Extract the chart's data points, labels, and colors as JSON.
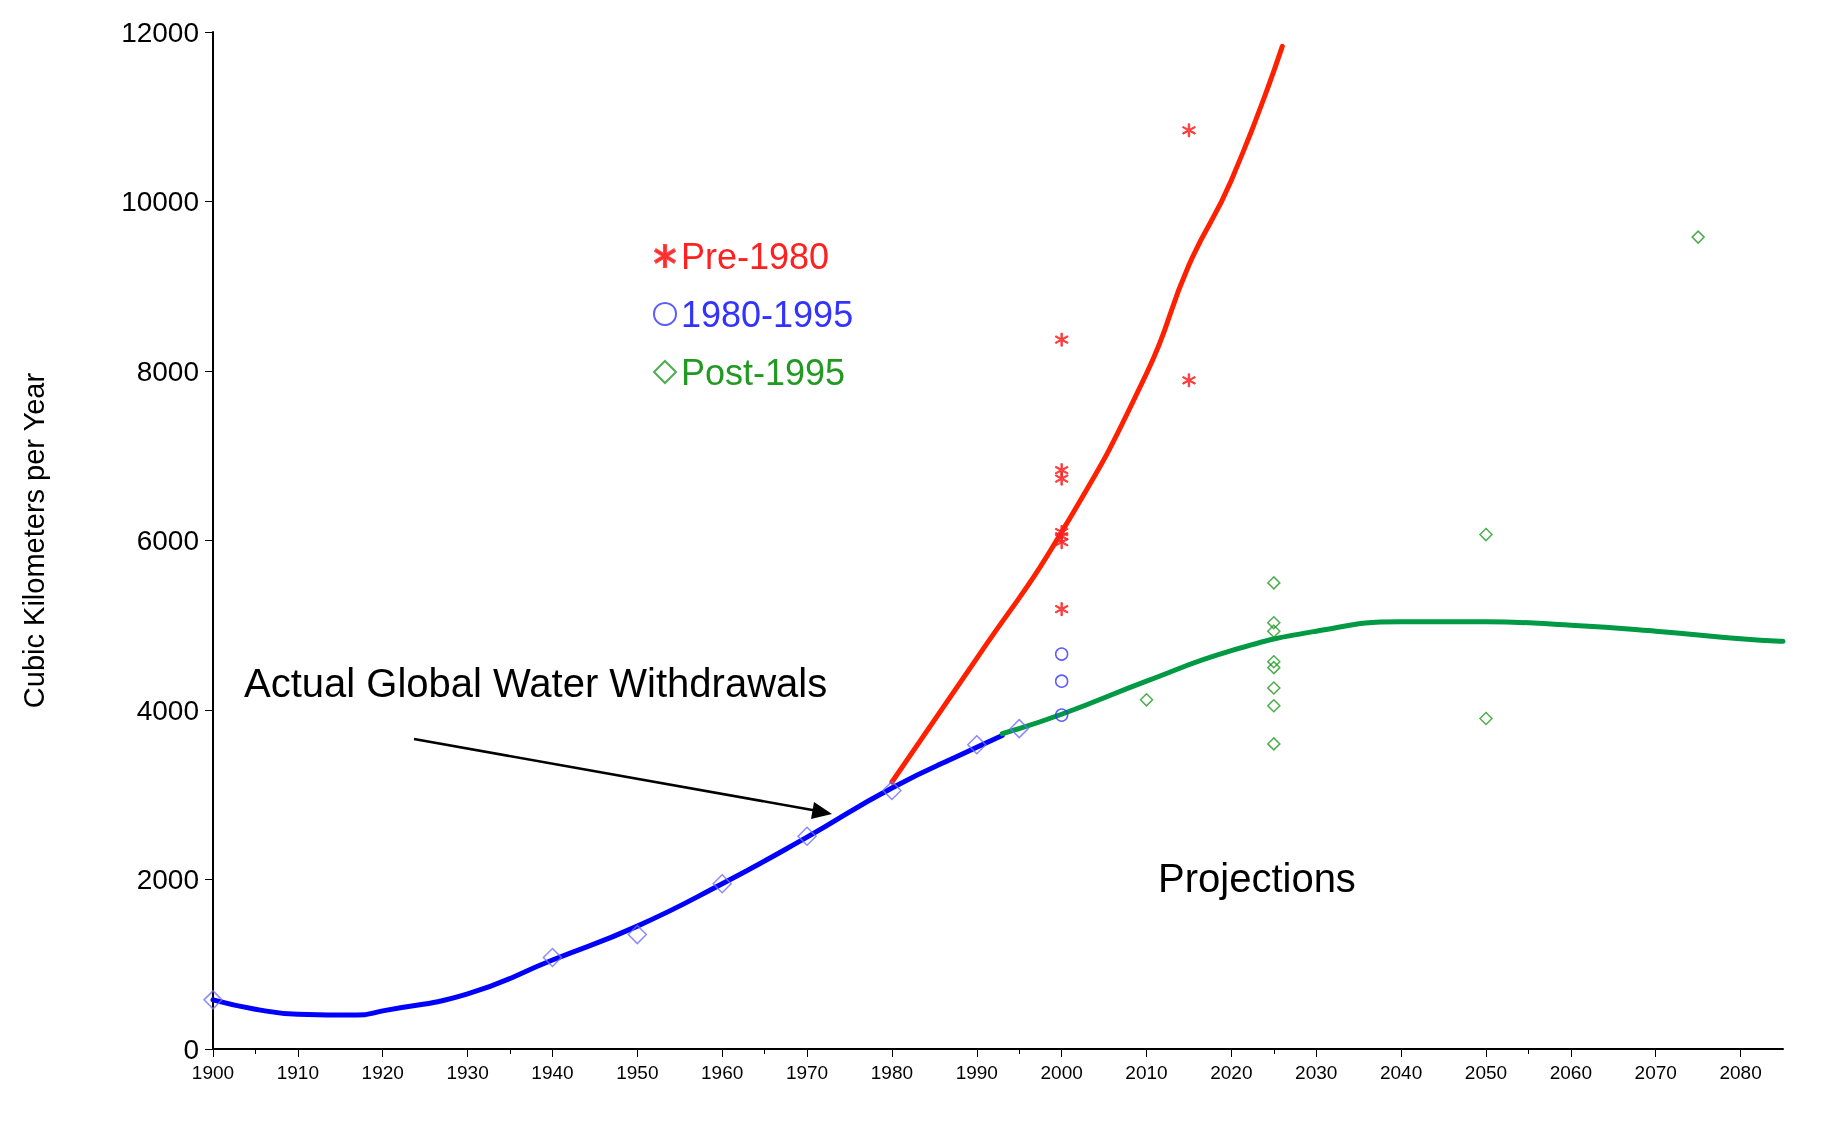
{
  "chart_data": {
    "type": "scatter",
    "ylabel": "Cubic Kilometers per Year",
    "xlim": [
      1900,
      2085
    ],
    "xticks": [
      1900,
      1910,
      1920,
      1930,
      1940,
      1950,
      1960,
      1970,
      1980,
      1990,
      2000,
      2010,
      2020,
      2030,
      2040,
      2050,
      2060,
      2070,
      2080
    ],
    "ylim": [
      0,
      12000
    ],
    "yticks": [
      0,
      2000,
      4000,
      6000,
      8000,
      10000,
      12000
    ],
    "grid": false,
    "legend": "top left",
    "annotations": [
      "Actual Global Water Withdrawals",
      "Projections"
    ],
    "series": [
      {
        "marker": "diamond",
        "color": "#6f6fff",
        "x": [
          1900,
          1940,
          1950,
          1960,
          1970,
          1980,
          1990,
          1995
        ],
        "values": [
          580,
          1080,
          1350,
          1950,
          2510,
          3050,
          3590,
          3780
        ]
      },
      {
        "type": "line",
        "marker": "none",
        "color": "#0000ff",
        "x": [
          1900,
          1905,
          1910,
          1917,
          1920,
          1930,
          1940,
          1950,
          1960,
          1970,
          1980,
          1990,
          1993
        ],
        "values": [
          580,
          470,
          410,
          400,
          450,
          650,
          1050,
          1450,
          1950,
          2500,
          3080,
          3560,
          3700
        ]
      },
      {
        "name": "Pre-1980",
        "marker": "star",
        "color": "#ff2020",
        "x": [
          2000,
          2000,
          2000,
          2000,
          2000,
          2000,
          2000,
          2015,
          2015
        ],
        "values": [
          8370,
          6830,
          6730,
          6100,
          6050,
          5980,
          5190,
          10840,
          7890
        ]
      },
      {
        "name": "1980-1995",
        "marker": "circle",
        "color": "#3333ff",
        "x": [
          2000,
          2000,
          2000
        ],
        "values": [
          4660,
          4340,
          3940
        ]
      },
      {
        "name": "Post-1995",
        "marker": "diamond",
        "color": "#229922",
        "x": [
          2010,
          2025,
          2025,
          2025,
          2025,
          2025,
          2025,
          2025,
          2025,
          2050,
          2050,
          2075
        ],
        "values": [
          4120,
          5500,
          5030,
          4930,
          4570,
          4500,
          4260,
          4050,
          3600,
          6070,
          3900,
          9580
        ]
      },
      {
        "type": "line",
        "marker": "none",
        "color": "#ff2000",
        "x": [
          1980,
          1990,
          2000,
          2010,
          2015,
          2020,
          2026
        ],
        "values": [
          3150,
          4610,
          6100,
          7970,
          9250,
          10250,
          11830
        ]
      },
      {
        "type": "line",
        "marker": "none",
        "color": "#009944",
        "x": [
          1993,
          2000,
          2010,
          2020,
          2030,
          2040,
          2050,
          2060,
          2070,
          2080,
          2085
        ],
        "values": [
          3720,
          3950,
          4340,
          4700,
          4930,
          5040,
          5040,
          5000,
          4930,
          4840,
          4810
        ]
      }
    ]
  }
}
